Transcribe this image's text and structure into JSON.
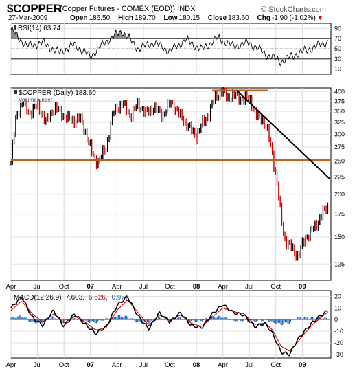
{
  "header": {
    "symbol": "$COPPER",
    "description": "(Copper Futures - COMEX (EOD)) INDX",
    "date": "27-Mar-2009",
    "open_label": "Open",
    "open": "186.50",
    "high_label": "High",
    "high": "189.70",
    "low_label": "Low",
    "low": "180.15",
    "close_label": "Close",
    "close": "183.60",
    "chg_label": "Chg",
    "chg": "-1.90 (-1.02%)",
    "watermark": "© StockCharts.com"
  },
  "colors": {
    "price_up": "#000000",
    "price_down": "#cc0000",
    "support_line": "#b5651d",
    "trend_line": "#000000",
    "macd_line": "#000000",
    "signal_line": "#cc0000",
    "histogram": "#2a6db5",
    "rsi_fill": "#888888"
  },
  "chart_data": [
    {
      "type": "line",
      "panel": "RSI",
      "legend": "RSI(14) 63.74",
      "ylim": [
        0,
        100
      ],
      "yticks": [
        10,
        30,
        50,
        70,
        90
      ],
      "reference_lines": [
        30,
        70
      ],
      "x": [
        2006.25,
        2006.4,
        2006.55,
        2006.7,
        2006.85,
        2007.0,
        2007.15,
        2007.3,
        2007.45,
        2007.6,
        2007.75,
        2007.9,
        2008.05,
        2008.2,
        2008.35,
        2008.5,
        2008.65,
        2008.8,
        2008.95,
        2009.1,
        2009.24
      ],
      "values": [
        88,
        55,
        62,
        42,
        58,
        35,
        65,
        85,
        50,
        62,
        45,
        68,
        48,
        72,
        55,
        62,
        40,
        25,
        40,
        52,
        64
      ],
      "grid": true
    },
    {
      "type": "line",
      "panel": "Price",
      "legend": "$COPPER (Daily) 183.60",
      "legend2": "Volume undef",
      "ylim": [
        112,
        410
      ],
      "log_scale": true,
      "yticks": [
        125,
        150,
        175,
        200,
        225,
        250,
        275,
        300,
        325,
        350,
        375,
        400
      ],
      "x": [
        2006.25,
        2006.3,
        2006.36,
        2006.42,
        2006.5,
        2006.58,
        2006.66,
        2006.75,
        2006.83,
        2006.9,
        2006.96,
        2007.02,
        2007.07,
        2007.15,
        2007.22,
        2007.3,
        2007.38,
        2007.45,
        2007.52,
        2007.6,
        2007.68,
        2007.76,
        2007.84,
        2007.92,
        2008.0,
        2008.05,
        2008.12,
        2008.18,
        2008.24,
        2008.3,
        2008.38,
        2008.44,
        2008.5,
        2008.56,
        2008.62,
        2008.68,
        2008.72,
        2008.76,
        2008.8,
        2008.84,
        2008.9,
        2008.96,
        2009.02,
        2009.08,
        2009.14,
        2009.2,
        2009.24
      ],
      "values": [
        248,
        340,
        372,
        345,
        365,
        325,
        360,
        340,
        328,
        335,
        300,
        260,
        248,
        275,
        350,
        370,
        340,
        368,
        345,
        360,
        340,
        372,
        342,
        318,
        295,
        320,
        345,
        388,
        400,
        385,
        390,
        378,
        385,
        340,
        335,
        300,
        260,
        215,
        170,
        145,
        140,
        131,
        148,
        155,
        165,
        178,
        184
      ],
      "support_line": 252,
      "resistance_line": 403,
      "trend_line": [
        [
          2008.38,
          403
        ],
        [
          2009.26,
          222
        ]
      ],
      "grid": true
    },
    {
      "type": "line",
      "panel": "MACD",
      "legend": "MACD(12,26,9)",
      "macd_value": "7.603",
      "signal_value": "6.626",
      "hist_value": "0.977",
      "ylim": [
        -33,
        25
      ],
      "yticks": [
        -30,
        -20,
        -10,
        0,
        10,
        20
      ],
      "x": [
        2006.25,
        2006.35,
        2006.45,
        2006.55,
        2006.65,
        2006.75,
        2006.85,
        2006.95,
        2007.05,
        2007.15,
        2007.25,
        2007.35,
        2007.45,
        2007.55,
        2007.65,
        2007.75,
        2007.85,
        2007.95,
        2008.05,
        2008.15,
        2008.25,
        2008.35,
        2008.45,
        2008.55,
        2008.65,
        2008.72,
        2008.8,
        2008.88,
        2008.95,
        2009.02,
        2009.1,
        2009.18,
        2009.24
      ],
      "series": [
        {
          "name": "MACD",
          "values": [
            10,
            20,
            2,
            -5,
            8,
            -6,
            5,
            -4,
            -12,
            -6,
            12,
            20,
            3,
            -8,
            6,
            -2,
            6,
            -5,
            -7,
            5,
            13,
            6,
            4,
            -6,
            -3,
            -12,
            -28,
            -30,
            -18,
            -10,
            -2,
            4,
            7.6
          ]
        },
        {
          "name": "Signal",
          "values": [
            8,
            16,
            5,
            -2,
            5,
            -3,
            3,
            -2,
            -9,
            -7,
            8,
            17,
            6,
            -5,
            4,
            -1,
            4,
            -3,
            -6,
            2,
            10,
            7,
            5,
            -4,
            -3,
            -9,
            -23,
            -27,
            -20,
            -12,
            -4,
            2,
            6.6
          ]
        }
      ],
      "grid": true
    }
  ],
  "axis": {
    "x_tick_labels": [
      {
        "t": 2006.25,
        "label": "Apr"
      },
      {
        "t": 2006.5,
        "label": "Jul"
      },
      {
        "t": 2006.75,
        "label": "Oct"
      },
      {
        "t": 2007.0,
        "label": "07"
      },
      {
        "t": 2007.25,
        "label": "Apr"
      },
      {
        "t": 2007.5,
        "label": "Jul"
      },
      {
        "t": 2007.75,
        "label": "Oct"
      },
      {
        "t": 2008.0,
        "label": "08"
      },
      {
        "t": 2008.25,
        "label": "Apr"
      },
      {
        "t": 2008.5,
        "label": "Jul"
      },
      {
        "t": 2008.75,
        "label": "Oct"
      },
      {
        "t": 2009.0,
        "label": "09"
      }
    ],
    "x_start": 2006.25,
    "x_end": 2009.27
  }
}
